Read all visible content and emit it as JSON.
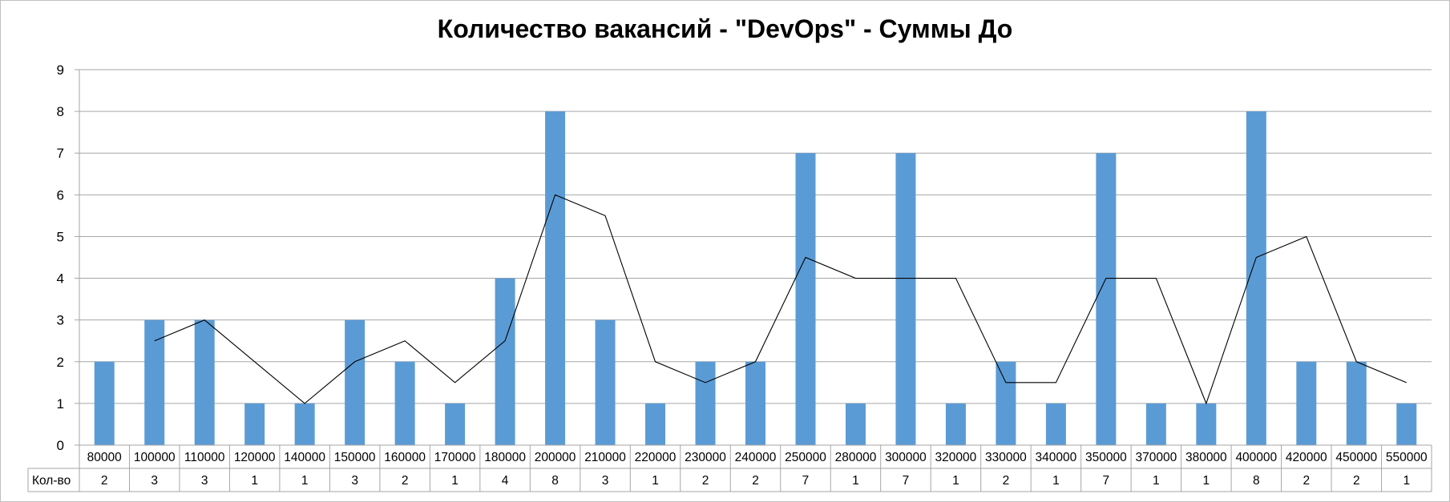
{
  "chart_data": {
    "type": "bar",
    "title": "Количество вакансий - \"DevOps\" - Суммы До",
    "xlabel": "",
    "ylabel": "",
    "ylim": [
      0,
      9
    ],
    "yticks": [
      0,
      1,
      2,
      3,
      4,
      5,
      6,
      7,
      8,
      9
    ],
    "grid": true,
    "bar_color": "#5b9bd5",
    "categories": [
      "80000",
      "100000",
      "110000",
      "120000",
      "140000",
      "150000",
      "160000",
      "170000",
      "180000",
      "200000",
      "210000",
      "220000",
      "230000",
      "240000",
      "250000",
      "280000",
      "300000",
      "320000",
      "330000",
      "340000",
      "350000",
      "370000",
      "380000",
      "400000",
      "420000",
      "450000",
      "550000"
    ],
    "series": [
      {
        "name": "Кол-во",
        "type": "bar",
        "values": [
          2,
          3,
          3,
          1,
          1,
          3,
          2,
          1,
          4,
          8,
          3,
          1,
          2,
          2,
          7,
          1,
          7,
          1,
          2,
          1,
          7,
          1,
          1,
          8,
          2,
          2,
          1
        ]
      },
      {
        "type": "line",
        "color": "#000000",
        "values": [
          null,
          2.5,
          3,
          2,
          1,
          2,
          2.5,
          1.5,
          2.5,
          6,
          5.5,
          2,
          1.5,
          2,
          4.5,
          4,
          4,
          4,
          1.5,
          1.5,
          4,
          4,
          1,
          4.5,
          5,
          2,
          1.5
        ]
      }
    ],
    "data_table": {
      "row_label": "Кол-во",
      "values": [
        2,
        3,
        3,
        1,
        1,
        3,
        2,
        1,
        4,
        8,
        3,
        1,
        2,
        2,
        7,
        1,
        7,
        1,
        2,
        1,
        7,
        1,
        1,
        8,
        2,
        2,
        1
      ]
    }
  }
}
